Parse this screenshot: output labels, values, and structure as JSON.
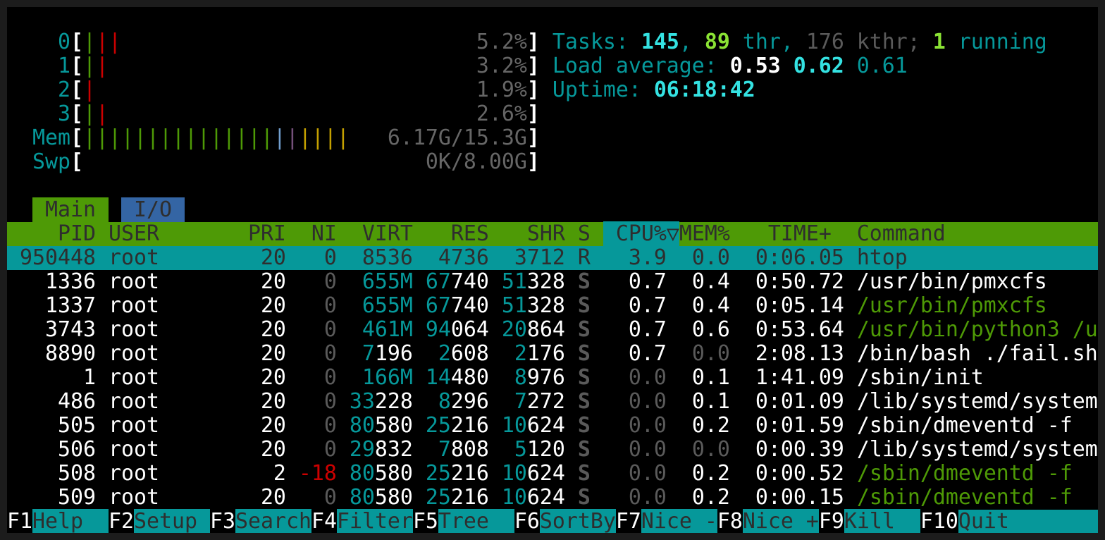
{
  "colors": {
    "bar_green": "#4e9a06",
    "bar_red": "#cc0000",
    "bar_blue": "#729fcf",
    "bar_magenta": "#75507b",
    "bar_yellow": "#c4a000",
    "header_bg": "#4e9a06",
    "selection_bg": "#06989a",
    "io_tab_bg": "#3465a4"
  },
  "meters": [
    {
      "label": "0",
      "bars": [
        {
          "color": "bar_green",
          "count": 1
        },
        {
          "color": "bar_red",
          "count": 2
        }
      ],
      "value": "5.2%"
    },
    {
      "label": "1",
      "bars": [
        {
          "color": "bar_green",
          "count": 1
        },
        {
          "color": "bar_red",
          "count": 1
        }
      ],
      "value": "3.2%"
    },
    {
      "label": "2",
      "bars": [
        {
          "color": "bar_red",
          "count": 1
        }
      ],
      "value": "1.9%"
    },
    {
      "label": "3",
      "bars": [
        {
          "color": "bar_green",
          "count": 1
        },
        {
          "color": "bar_red",
          "count": 1
        }
      ],
      "value": "2.6%"
    },
    {
      "label": "Mem",
      "bars": [
        {
          "color": "bar_green",
          "count": 15
        },
        {
          "color": "bar_blue",
          "count": 1
        },
        {
          "color": "bar_magenta",
          "count": 1
        },
        {
          "color": "bar_yellow",
          "count": 4
        }
      ],
      "value": "6.17G/15.3G"
    },
    {
      "label": "Swp",
      "bars": [],
      "value": "0K/8.00G"
    }
  ],
  "summary": {
    "tasks_label": "Tasks:",
    "tasks": "145",
    "sep": ",",
    "threads": "89",
    "threads_label": "thr,",
    "kthreads": "176",
    "kthreads_label": "kthr;",
    "running": "1",
    "running_label": "running",
    "load_label": "Load average:",
    "load": [
      "0.53",
      "0.62",
      "0.61"
    ],
    "uptime_label": "Uptime:",
    "uptime": "06:18:42"
  },
  "tabs": [
    {
      "label": "Main",
      "active": true
    },
    {
      "label": "I/O",
      "active": false
    }
  ],
  "columns": {
    "pid": "PID",
    "user": "USER",
    "pri": "PRI",
    "ni": "NI",
    "virt": "VIRT",
    "res": "RES",
    "shr": "SHR",
    "s": "S",
    "cpu": "CPU%",
    "mem": "MEM%",
    "time": "TIME+",
    "command": "Command"
  },
  "sort_indicator": "▽",
  "processes": [
    {
      "pid": "950448",
      "user": "root",
      "pri": "20",
      "ni": "0",
      "virt": "8536",
      "res": "4736",
      "shr": "3712",
      "s": "R",
      "cpu": "3.9",
      "mem": "0.0",
      "time": "0:06.05",
      "command": "htop",
      "selected": true,
      "thread": false
    },
    {
      "pid": "1336",
      "user": "root",
      "pri": "20",
      "ni": "0",
      "virt": "655M",
      "res": "67740",
      "shr": "51328",
      "s": "S",
      "cpu": "0.7",
      "mem": "0.4",
      "time": "0:50.72",
      "command": "/usr/bin/pmxcfs",
      "thread": false
    },
    {
      "pid": "1337",
      "user": "root",
      "pri": "20",
      "ni": "0",
      "virt": "655M",
      "res": "67740",
      "shr": "51328",
      "s": "S",
      "cpu": "0.7",
      "mem": "0.4",
      "time": "0:05.14",
      "command": "/usr/bin/pmxcfs",
      "thread": true
    },
    {
      "pid": "3743",
      "user": "root",
      "pri": "20",
      "ni": "0",
      "virt": "461M",
      "res": "94064",
      "shr": "20864",
      "s": "S",
      "cpu": "0.7",
      "mem": "0.6",
      "time": "0:53.64",
      "command": "/usr/bin/python3 /u",
      "thread": true
    },
    {
      "pid": "8890",
      "user": "root",
      "pri": "20",
      "ni": "0",
      "virt": "7196",
      "res": "2608",
      "shr": "2176",
      "s": "S",
      "cpu": "0.7",
      "mem": "0.0",
      "time": "2:08.13",
      "command": "/bin/bash ./fail.sh",
      "thread": false
    },
    {
      "pid": "1",
      "user": "root",
      "pri": "20",
      "ni": "0",
      "virt": "166M",
      "res": "14480",
      "shr": "8976",
      "s": "S",
      "cpu": "0.0",
      "mem": "0.1",
      "time": "1:41.09",
      "command": "/sbin/init",
      "thread": false
    },
    {
      "pid": "486",
      "user": "root",
      "pri": "20",
      "ni": "0",
      "virt": "33228",
      "res": "8296",
      "shr": "7272",
      "s": "S",
      "cpu": "0.0",
      "mem": "0.1",
      "time": "0:01.09",
      "command": "/lib/systemd/system",
      "thread": false
    },
    {
      "pid": "505",
      "user": "root",
      "pri": "20",
      "ni": "0",
      "virt": "80580",
      "res": "25216",
      "shr": "10624",
      "s": "S",
      "cpu": "0.0",
      "mem": "0.2",
      "time": "0:01.59",
      "command": "/sbin/dmeventd -f",
      "thread": false
    },
    {
      "pid": "506",
      "user": "root",
      "pri": "20",
      "ni": "0",
      "virt": "29832",
      "res": "7808",
      "shr": "5120",
      "s": "S",
      "cpu": "0.0",
      "mem": "0.0",
      "time": "0:00.39",
      "command": "/lib/systemd/system",
      "thread": false
    },
    {
      "pid": "508",
      "user": "root",
      "pri": "2",
      "ni": "-18",
      "virt": "80580",
      "res": "25216",
      "shr": "10624",
      "s": "S",
      "cpu": "0.0",
      "mem": "0.2",
      "time": "0:00.52",
      "command": "/sbin/dmeventd -f",
      "thread": true
    },
    {
      "pid": "509",
      "user": "root",
      "pri": "20",
      "ni": "0",
      "virt": "80580",
      "res": "25216",
      "shr": "10624",
      "s": "S",
      "cpu": "0.0",
      "mem": "0.2",
      "time": "0:00.15",
      "command": "/sbin/dmeventd -f",
      "thread": true
    }
  ],
  "footer": [
    {
      "key": "F1",
      "label": "Help"
    },
    {
      "key": "F2",
      "label": "Setup"
    },
    {
      "key": "F3",
      "label": "Search"
    },
    {
      "key": "F4",
      "label": "Filter"
    },
    {
      "key": "F5",
      "label": "Tree"
    },
    {
      "key": "F6",
      "label": "SortBy"
    },
    {
      "key": "F7",
      "label": "Nice -"
    },
    {
      "key": "F8",
      "label": "Nice +"
    },
    {
      "key": "F9",
      "label": "Kill"
    },
    {
      "key": "F10",
      "label": "Quit"
    }
  ]
}
